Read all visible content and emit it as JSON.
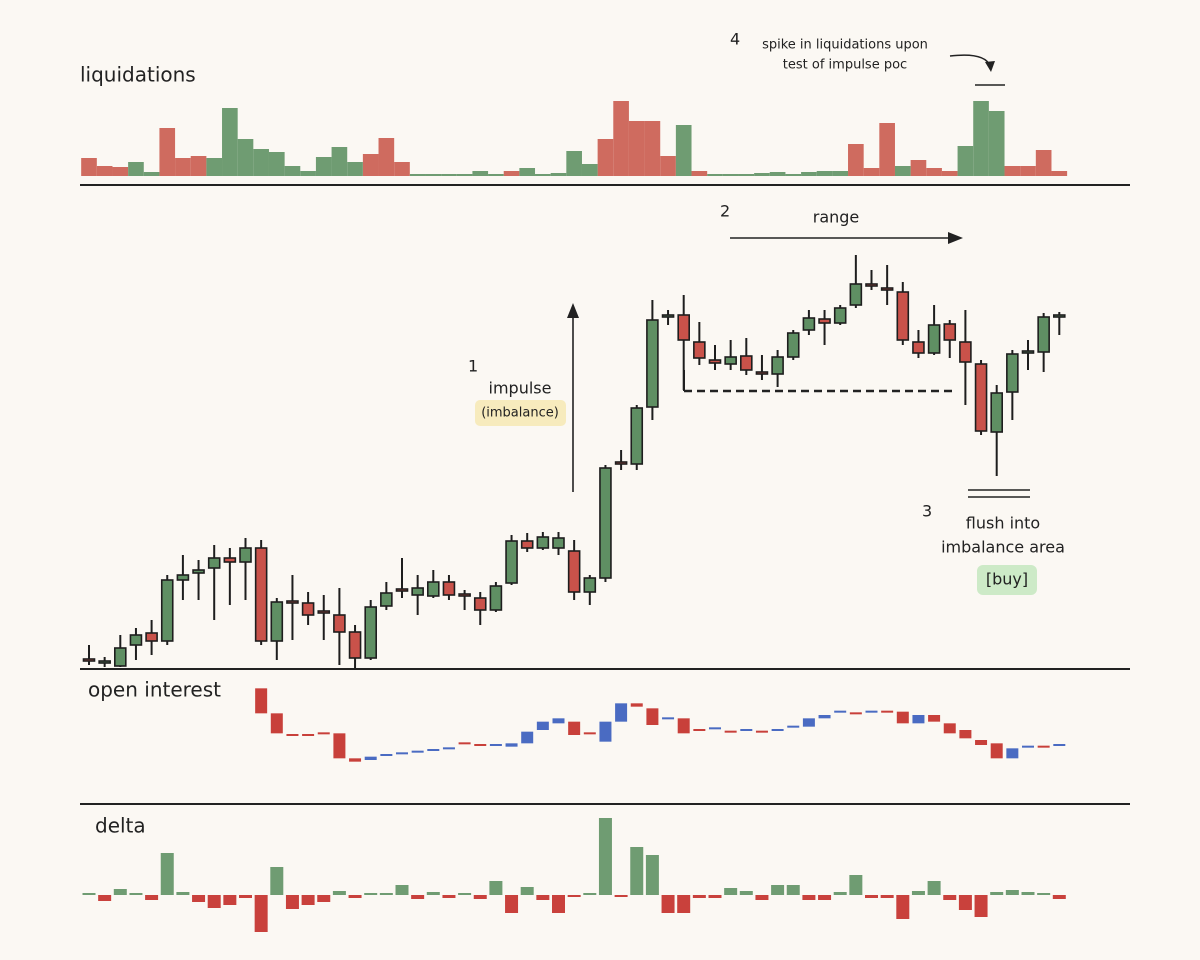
{
  "chart_data": [
    {
      "type": "bar",
      "title": "liquidations",
      "ylim": [
        0,
        80
      ],
      "series": [
        {
          "color": "#cf6b5f",
          "values": [
            18,
            10,
            9,
            null,
            null,
            48,
            18,
            20,
            null,
            null,
            null,
            null,
            null,
            null,
            null,
            null,
            null,
            null,
            22,
            38,
            14,
            null,
            null,
            null,
            null,
            null,
            null,
            5,
            null,
            null,
            null,
            null,
            null,
            37,
            75,
            55,
            55,
            20,
            null,
            5,
            null,
            null,
            null,
            null,
            null,
            null,
            null,
            null,
            null,
            32,
            8,
            53,
            null,
            16,
            8,
            5,
            null,
            null,
            null,
            10,
            10,
            26,
            5
          ]
        },
        {
          "color": "#6f9c72",
          "values": [
            null,
            null,
            null,
            14,
            4,
            null,
            null,
            null,
            18,
            68,
            37,
            27,
            24,
            10,
            5,
            19,
            29,
            14,
            null,
            null,
            null,
            2,
            2,
            2,
            2,
            5,
            2,
            null,
            8,
            2,
            3,
            25,
            12,
            null,
            null,
            null,
            null,
            null,
            51,
            null,
            1,
            2,
            2,
            3,
            4,
            2,
            4,
            5,
            5,
            null,
            null,
            null,
            10,
            null,
            null,
            null,
            30,
            75,
            65,
            null,
            null,
            null,
            null
          ]
        }
      ]
    },
    {
      "type": "candlestick",
      "up_color": "#5f8f63",
      "down_color": "#c9524a",
      "ylim": [
        30,
        460
      ],
      "open": [
        40,
        37,
        34,
        55,
        67,
        59,
        120,
        127,
        132,
        142,
        138,
        152,
        59,
        98,
        97,
        88,
        85,
        68,
        42,
        94,
        110,
        105,
        104,
        118,
        105,
        102,
        90,
        117,
        159,
        152,
        152,
        149,
        108,
        122,
        237,
        236,
        293,
        382,
        385,
        358,
        340,
        336,
        344,
        327,
        326,
        343,
        370,
        381,
        377,
        395,
        415,
        411,
        408,
        358,
        347,
        376,
        358,
        336,
        268,
        308,
        347,
        348,
        384
      ],
      "high": [
        55,
        43,
        65,
        72,
        80,
        125,
        145,
        140,
        155,
        152,
        162,
        160,
        102,
        125,
        108,
        105,
        112,
        75,
        100,
        118,
        142,
        125,
        130,
        125,
        110,
        108,
        118,
        165,
        167,
        168,
        168,
        160,
        125,
        235,
        250,
        295,
        400,
        390,
        405,
        378,
        355,
        360,
        362,
        345,
        350,
        370,
        390,
        390,
        395,
        445,
        430,
        435,
        418,
        370,
        395,
        380,
        390,
        340,
        315,
        350,
        360,
        387,
        388
      ],
      "low": [
        35,
        33,
        33,
        40,
        45,
        55,
        100,
        100,
        80,
        95,
        100,
        55,
        40,
        60,
        75,
        60,
        35,
        32,
        40,
        90,
        102,
        85,
        102,
        100,
        90,
        75,
        88,
        115,
        148,
        150,
        145,
        100,
        95,
        118,
        230,
        230,
        280,
        375,
        310,
        335,
        330,
        330,
        325,
        320,
        313,
        340,
        365,
        355,
        375,
        392,
        410,
        395,
        355,
        342,
        345,
        342,
        295,
        265,
        224,
        280,
        330,
        328,
        365
      ],
      "close": [
        39,
        38,
        52,
        65,
        59,
        120,
        125,
        130,
        142,
        138,
        152,
        59,
        98,
        97,
        85,
        87,
        68,
        42,
        93,
        107,
        109,
        112,
        118,
        105,
        104,
        90,
        114,
        159,
        152,
        163,
        162,
        108,
        122,
        232,
        236,
        292,
        380,
        384,
        360,
        342,
        337,
        343,
        330,
        326,
        343,
        367,
        382,
        377,
        392,
        416,
        414,
        409,
        360,
        347,
        375,
        360,
        338,
        269,
        307,
        346,
        348,
        383,
        384
      ]
    },
    {
      "type": "candlestick",
      "title": "open interest",
      "up_color": "#4a6bc2",
      "down_color": "#c8403a",
      "ylim": [
        20,
        80
      ],
      "open": [
        null,
        null,
        null,
        null,
        null,
        null,
        null,
        null,
        null,
        null,
        null,
        75,
        60,
        47,
        47,
        48,
        48,
        33,
        32,
        34,
        35,
        36,
        37,
        38,
        42,
        41,
        40,
        40,
        42,
        50,
        54,
        55,
        48,
        43,
        55,
        66,
        63,
        56,
        57,
        50,
        50,
        49,
        49,
        49,
        49,
        51,
        52,
        57,
        60,
        60,
        60,
        61,
        61,
        54,
        59,
        54,
        50,
        44,
        42,
        33,
        39,
        40,
        40
      ],
      "close": [
        null,
        null,
        null,
        null,
        null,
        null,
        null,
        null,
        null,
        null,
        null,
        60,
        48,
        46,
        46,
        47,
        33,
        31,
        34,
        35,
        36,
        37,
        38,
        39,
        41,
        40,
        41,
        42,
        49,
        55,
        57,
        47,
        47,
        55,
        66,
        64,
        53,
        57,
        48,
        49,
        51,
        48,
        50,
        48,
        50,
        52,
        57,
        59,
        61,
        59,
        61,
        60,
        54,
        59,
        55,
        48,
        45,
        41,
        33,
        39,
        40,
        39,
        41
      ]
    },
    {
      "type": "bar",
      "title": "delta",
      "positive_color": "#6f9c72",
      "negative_color": "#c9413c",
      "ylim": [
        -40,
        80
      ],
      "values": [
        1,
        -6,
        6,
        2,
        -5,
        42,
        3,
        -7,
        -13,
        -10,
        -3,
        -37,
        28,
        -14,
        -10,
        -7,
        4,
        -3,
        2,
        2,
        10,
        -4,
        3,
        -3,
        2,
        -4,
        14,
        -18,
        8,
        -5,
        -18,
        -2,
        2,
        77,
        -2,
        48,
        40,
        -18,
        -18,
        -3,
        -3,
        7,
        4,
        -5,
        10,
        10,
        -5,
        -5,
        3,
        20,
        -3,
        -3,
        -24,
        4,
        14,
        -5,
        -15,
        -22,
        3,
        5,
        3,
        0,
        -4
      ]
    }
  ],
  "annotations": {
    "n1": "1",
    "impulse": "impulse",
    "imbalance": "(imbalance)",
    "n2": "2",
    "range": "range",
    "n3": "3",
    "flush1": "flush into",
    "flush2": "imbalance area",
    "buy": "[buy]",
    "n4": "4",
    "spike1": "spike in liquidations upon",
    "spike2": "test of impulse poc"
  }
}
